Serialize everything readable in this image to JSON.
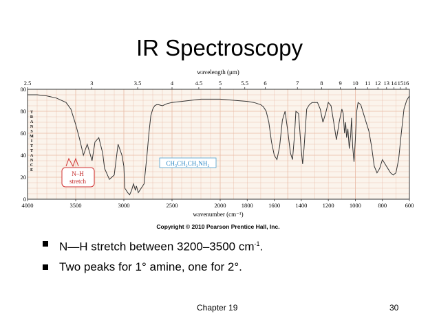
{
  "slide": {
    "title": "IR Spectroscopy",
    "bullets": [
      {
        "text": "N—H stretch between 3200–3500 cm",
        "sup": "-1",
        "tail": "."
      },
      {
        "text": "Two peaks for 1° amine, one for 2°."
      }
    ],
    "footer": {
      "chapter": "Chapter 19",
      "page": "30"
    }
  },
  "chart_data": {
    "type": "line",
    "top_axis_label": "wavelength (μm)",
    "top_ticks": [
      "2.5",
      "3",
      "3.5",
      "4",
      "4.5",
      "5",
      "5.5",
      "6",
      "7",
      "8",
      "9",
      "10",
      "11",
      "12",
      "13",
      "14",
      "15",
      "16"
    ],
    "xlabel": "wavenumber (cm⁻¹)",
    "x_ticks": [
      4000,
      3500,
      3000,
      2500,
      2000,
      1800,
      1600,
      1400,
      1200,
      1000,
      800,
      600
    ],
    "ylabel": "TRANSMITTANCE",
    "y_ticks": [
      0,
      20,
      40,
      60,
      80,
      100
    ],
    "xlim": [
      4000,
      600
    ],
    "ylim": [
      0,
      100
    ],
    "grid": true,
    "compound": "CH₃CH₂CH₂NH₂",
    "annotation": {
      "line1": "N–H",
      "line2": "stretch"
    },
    "copyright": "Copyright © 2010 Pearson Prentice Hall, Inc.",
    "colors": {
      "grid": "#e8b9a3",
      "trace": "#333333",
      "annotation": "#d03030",
      "compound_box": "#4a9fd0"
    },
    "series": [
      {
        "x": [
          4000,
          3900,
          3800,
          3700,
          3600,
          3550,
          3500,
          3460,
          3420,
          3380,
          3360,
          3330,
          3300,
          3260,
          3220,
          3200,
          3150,
          3100,
          3060,
          3020,
          3000,
          2990,
          2960,
          2940,
          2920,
          2900,
          2880,
          2870,
          2850,
          2820,
          2790,
          2760,
          2740,
          2720,
          2700,
          2680,
          2660,
          2640,
          2600,
          2550,
          2500,
          2400,
          2300,
          2200,
          2100,
          2000,
          1900,
          1800,
          1750,
          1700,
          1680,
          1660,
          1640,
          1620,
          1600,
          1580,
          1560,
          1540,
          1520,
          1500,
          1480,
          1465,
          1450,
          1440,
          1420,
          1400,
          1390,
          1380,
          1360,
          1340,
          1320,
          1300,
          1280,
          1260,
          1240,
          1220,
          1200,
          1180,
          1160,
          1140,
          1120,
          1100,
          1090,
          1080,
          1072,
          1065,
          1055,
          1045,
          1035,
          1028,
          1020,
          1010,
          1000,
          990,
          980,
          960,
          940,
          920,
          900,
          880,
          860,
          840,
          820,
          800,
          780,
          760,
          740,
          720,
          700,
          680,
          660,
          640,
          620,
          600
        ],
        "y": [
          95,
          95,
          94,
          92,
          88,
          82,
          68,
          55,
          40,
          50,
          44,
          35,
          52,
          56,
          42,
          28,
          18,
          22,
          50,
          40,
          30,
          10,
          6,
          4,
          8,
          14,
          8,
          12,
          6,
          10,
          14,
          40,
          60,
          76,
          82,
          85,
          86,
          86,
          85,
          87,
          88,
          89,
          90,
          91,
          91,
          91,
          90,
          89,
          88,
          86,
          84,
          80,
          70,
          52,
          40,
          36,
          48,
          72,
          80,
          62,
          42,
          36,
          58,
          80,
          78,
          44,
          32,
          46,
          82,
          86,
          88,
          88,
          88,
          82,
          70,
          78,
          88,
          85,
          70,
          54,
          70,
          82,
          78,
          60,
          70,
          56,
          64,
          46,
          58,
          74,
          48,
          34,
          54,
          80,
          88,
          86,
          78,
          70,
          62,
          48,
          30,
          24,
          28,
          36,
          32,
          28,
          24,
          22,
          24,
          36,
          60,
          82,
          90,
          94
        ]
      }
    ]
  }
}
